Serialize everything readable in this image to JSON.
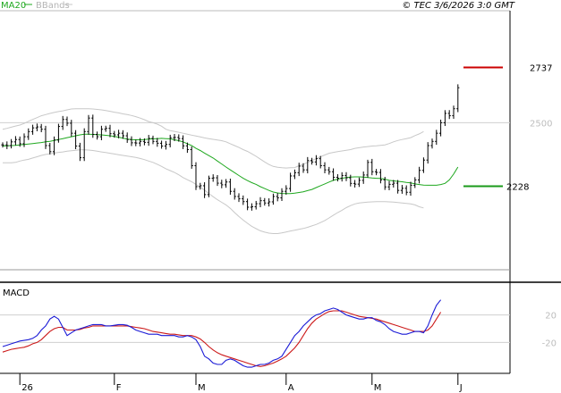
{
  "legend": {
    "ma_label": "MA20",
    "bb_label": "BBands",
    "ma_color": "#1fa81f",
    "bb_color": "#c8c8c8"
  },
  "copyright": "© TEC 3/6/2026 3:0 GMT",
  "macd_label": "MACD",
  "colors": {
    "price": "#000000",
    "macd_line": "#1a1ad6",
    "signal_line": "#cc1a1a",
    "resistance": "#cc0000",
    "support": "#1a9a1a",
    "ref_line": "#cfcfcf",
    "frame": "#000000"
  },
  "chart_data": [
    {
      "type": "line",
      "name": "price",
      "ylim": [
        1870,
        2980
      ],
      "levels": {
        "resistance": {
          "value": 2737,
          "label": "2737"
        },
        "reference": {
          "value": 2500,
          "label": "2500"
        },
        "support": {
          "value": 2228,
          "label": "2228"
        }
      },
      "x_ticks": [
        {
          "label": "26",
          "index": 4
        },
        {
          "label": "F",
          "index": 26
        },
        {
          "label": "M",
          "index": 45
        },
        {
          "label": "A",
          "index": 66
        },
        {
          "label": "M",
          "index": 86
        },
        {
          "label": "J",
          "index": 106
        }
      ],
      "close": [
        2405,
        2402,
        2418,
        2428,
        2410,
        2440,
        2462,
        2478,
        2482,
        2472,
        2402,
        2376,
        2426,
        2484,
        2514,
        2498,
        2455,
        2400,
        2350,
        2462,
        2520,
        2450,
        2440,
        2472,
        2476,
        2453,
        2448,
        2455,
        2444,
        2428,
        2414,
        2413,
        2420,
        2416,
        2433,
        2420,
        2412,
        2400,
        2407,
        2436,
        2437,
        2432,
        2401,
        2385,
        2316,
        2226,
        2230,
        2192,
        2262,
        2264,
        2241,
        2234,
        2246,
        2206,
        2184,
        2174,
        2162,
        2138,
        2140,
        2153,
        2166,
        2156,
        2161,
        2184,
        2178,
        2206,
        2218,
        2272,
        2286,
        2314,
        2298,
        2338,
        2332,
        2346,
        2316,
        2298,
        2290,
        2266,
        2262,
        2274,
        2264,
        2240,
        2237,
        2253,
        2276,
        2330,
        2290,
        2287,
        2255,
        2225,
        2236,
        2241,
        2210,
        2219,
        2202,
        2232,
        2255,
        2296,
        2340,
        2402,
        2420,
        2455,
        2500,
        2540,
        2530,
        2560,
        2650
      ],
      "ma20": [
        2400,
        2401,
        2402,
        2403,
        2405,
        2407,
        2409,
        2411,
        2413,
        2415,
        2418,
        2420,
        2424,
        2428,
        2432,
        2436,
        2440,
        2444,
        2448,
        2451,
        2451,
        2450,
        2449,
        2448,
        2446,
        2444,
        2441,
        2438,
        2434,
        2430,
        2428,
        2427,
        2427,
        2428,
        2430,
        2431,
        2432,
        2433,
        2432,
        2431,
        2427,
        2423,
        2418,
        2410,
        2402,
        2390,
        2381,
        2370,
        2359,
        2349,
        2336,
        2323,
        2310,
        2298,
        2286,
        2274,
        2262,
        2252,
        2243,
        2236,
        2226,
        2218,
        2210,
        2203,
        2199,
        2197,
        2196,
        2196,
        2198,
        2201,
        2204,
        2209,
        2214,
        2222,
        2230,
        2238,
        2246,
        2253,
        2258,
        2262,
        2265,
        2267,
        2268,
        2268,
        2267,
        2265,
        2263,
        2262,
        2261,
        2258,
        2253,
        2251,
        2249,
        2247,
        2244,
        2242,
        2238,
        2235,
        2233,
        2232,
        2232,
        2232,
        2235,
        2240,
        2255,
        2280,
        2310
      ],
      "bb_upper": [
        2472,
        2476,
        2481,
        2486,
        2490,
        2497,
        2506,
        2514,
        2522,
        2530,
        2535,
        2540,
        2544,
        2548,
        2551,
        2555,
        2559,
        2560,
        2560,
        2560,
        2560,
        2559,
        2557,
        2555,
        2552,
        2549,
        2545,
        2542,
        2538,
        2535,
        2531,
        2526,
        2520,
        2513,
        2505,
        2500,
        2494,
        2485,
        2472,
        2466,
        2463,
        2459,
        2455,
        2451,
        2447,
        2443,
        2439,
        2435,
        2432,
        2429,
        2426,
        2423,
        2418,
        2410,
        2402,
        2394,
        2385,
        2377,
        2367,
        2356,
        2344,
        2332,
        2321,
        2313,
        2309,
        2307,
        2306,
        2307,
        2308,
        2316,
        2322,
        2330,
        2338,
        2346,
        2354,
        2362,
        2369,
        2373,
        2376,
        2379,
        2382,
        2385,
        2390,
        2393,
        2396,
        2398,
        2400,
        2401,
        2403,
        2405,
        2411,
        2418,
        2424,
        2428,
        2432,
        2436,
        2445,
        2452,
        2462
      ],
      "bb_lower": [
        2328,
        2328,
        2328,
        2330,
        2336,
        2340,
        2343,
        2349,
        2354,
        2360,
        2364,
        2367,
        2370,
        2373,
        2375,
        2378,
        2380,
        2382,
        2384,
        2384,
        2383,
        2381,
        2378,
        2375,
        2372,
        2369,
        2366,
        2363,
        2360,
        2357,
        2354,
        2351,
        2347,
        2342,
        2336,
        2330,
        2322,
        2313,
        2303,
        2295,
        2287,
        2277,
        2265,
        2256,
        2247,
        2236,
        2224,
        2211,
        2197,
        2183,
        2170,
        2159,
        2148,
        2133,
        2115,
        2098,
        2083,
        2069,
        2056,
        2046,
        2037,
        2031,
        2027,
        2025,
        2025,
        2028,
        2032,
        2036,
        2039,
        2043,
        2047,
        2052,
        2058,
        2064,
        2072,
        2081,
        2092,
        2104,
        2115,
        2125,
        2136,
        2145,
        2152,
        2156,
        2158,
        2160,
        2161,
        2162,
        2162,
        2162,
        2161,
        2160,
        2158,
        2156,
        2154,
        2152,
        2148,
        2140,
        2135
      ]
    },
    {
      "type": "line",
      "name": "MACD",
      "ylim": [
        -65,
        65
      ],
      "y_ticks": [
        {
          "value": 20,
          "label": "20"
        },
        {
          "value": -20,
          "label": "-20"
        }
      ],
      "macd": [
        -26,
        -24,
        -22,
        -20,
        -18,
        -17,
        -16,
        -14,
        -10,
        -2,
        4,
        14,
        18,
        14,
        2,
        -10,
        -6,
        -2,
        0,
        2,
        4,
        6,
        6,
        6,
        4,
        4,
        5,
        6,
        6,
        5,
        2,
        -2,
        -4,
        -6,
        -8,
        -8,
        -8,
        -10,
        -10,
        -10,
        -10,
        -12,
        -12,
        -10,
        -12,
        -16,
        -26,
        -40,
        -44,
        -50,
        -52,
        -52,
        -46,
        -44,
        -46,
        -50,
        -54,
        -56,
        -56,
        -54,
        -52,
        -52,
        -50,
        -46,
        -44,
        -40,
        -30,
        -20,
        -10,
        -4,
        4,
        10,
        16,
        20,
        22,
        26,
        28,
        30,
        28,
        24,
        20,
        18,
        16,
        14,
        14,
        16,
        16,
        12,
        10,
        6,
        0,
        -4,
        -6,
        -8,
        -8,
        -6,
        -4,
        -4,
        -6,
        4,
        20,
        34,
        42
      ],
      "signal": [
        -34,
        -32,
        -30,
        -29,
        -28,
        -27,
        -25,
        -22,
        -20,
        -16,
        -10,
        -4,
        0,
        2,
        2,
        -2,
        -2,
        -2,
        -1,
        1,
        2,
        4,
        4,
        4,
        4,
        4,
        4,
        4,
        4,
        4,
        3,
        2,
        1,
        0,
        -2,
        -4,
        -5,
        -6,
        -7,
        -8,
        -8,
        -9,
        -10,
        -10,
        -10,
        -12,
        -15,
        -20,
        -26,
        -31,
        -35,
        -38,
        -40,
        -42,
        -44,
        -46,
        -48,
        -50,
        -52,
        -54,
        -55,
        -54,
        -52,
        -50,
        -47,
        -44,
        -40,
        -34,
        -28,
        -20,
        -10,
        0,
        8,
        14,
        18,
        22,
        25,
        26,
        26,
        26,
        24,
        22,
        20,
        18,
        17,
        16,
        15,
        14,
        12,
        10,
        8,
        6,
        4,
        2,
        0,
        -2,
        -4,
        -4,
        -4,
        -2,
        4,
        14,
        24
      ]
    }
  ]
}
